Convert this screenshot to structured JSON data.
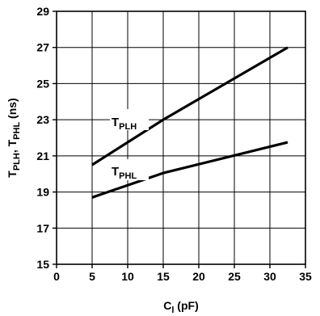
{
  "chart_data": {
    "type": "line",
    "xlabel": {
      "main": "C",
      "sub": "l",
      "unit": " (pF)"
    },
    "ylabel": {
      "parts": [
        {
          "main": "T",
          "sub": "PLH"
        },
        {
          "main": ", T",
          "sub": "PHL"
        },
        {
          "main": " (ns)",
          "sub": ""
        }
      ]
    },
    "xlim": [
      0,
      35
    ],
    "ylim": [
      15,
      29
    ],
    "xticks": [
      0,
      5,
      10,
      15,
      20,
      25,
      30,
      35
    ],
    "yticks": [
      15,
      17,
      19,
      21,
      23,
      25,
      27,
      29
    ],
    "grid": true,
    "series": [
      {
        "name": "T",
        "sub": "PLH",
        "x": [
          5,
          15,
          32.5
        ],
        "y": [
          20.5,
          23.0,
          27.0
        ]
      },
      {
        "name": "T",
        "sub": "PHL",
        "x": [
          5,
          15,
          32.5
        ],
        "y": [
          18.7,
          20.05,
          21.75
        ]
      }
    ]
  }
}
